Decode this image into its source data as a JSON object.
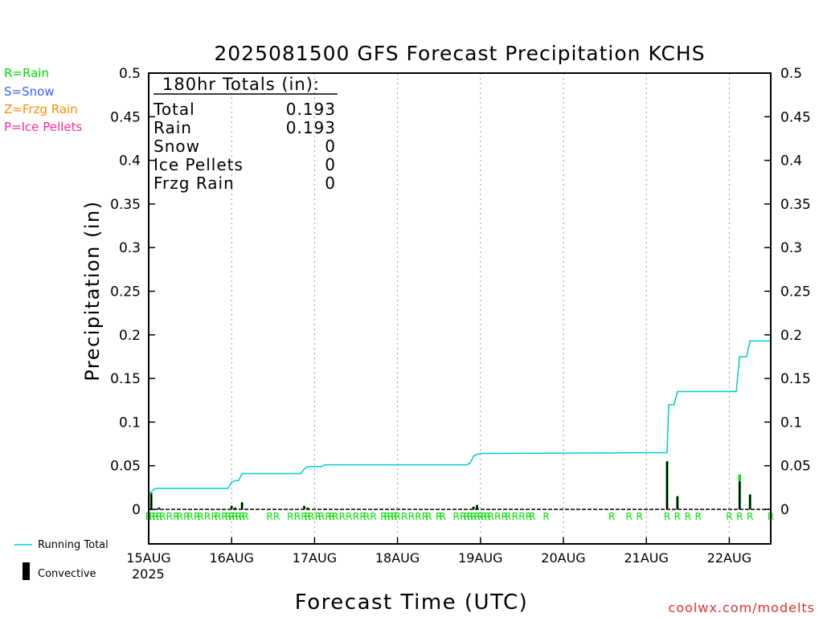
{
  "chart_data": {
    "type": "bar",
    "title": "2025081500 GFS Forecast Precipitation KCHS",
    "xlabel": "Forecast Time (UTC)",
    "ylabel": "Precipitation (in)",
    "ylim": [
      0,
      0.5
    ],
    "xlim_hours": [
      0,
      180
    ],
    "y_ticks": [
      "0",
      "0.05",
      "0.1",
      "0.15",
      "0.2",
      "0.25",
      "0.3",
      "0.35",
      "0.4",
      "0.45",
      "0.5"
    ],
    "x_ticks": [
      {
        "label": "15AUG",
        "hour": 0
      },
      {
        "label": "16AUG",
        "hour": 24
      },
      {
        "label": "17AUG",
        "hour": 48
      },
      {
        "label": "18AUG",
        "hour": 72
      },
      {
        "label": "19AUG",
        "hour": 96
      },
      {
        "label": "20AUG",
        "hour": 120
      },
      {
        "label": "21AUG",
        "hour": 144
      },
      {
        "label": "22AUG",
        "hour": 168
      }
    ],
    "x_year_label": "2025",
    "grid": "vertical dotted lines at each day",
    "legend_top_left": [
      {
        "label": "R=Rain",
        "color": "#00dd00"
      },
      {
        "label": "S=Snow",
        "color": "#3a5cff"
      },
      {
        "label": "Z=Frzg Rain",
        "color": "#ff8c00"
      },
      {
        "label": "P=Ice Pellets",
        "color": "#ff2a90"
      }
    ],
    "legend_bottom_left": [
      {
        "label": "Running Total",
        "color": "#00cccc",
        "kind": "line"
      },
      {
        "label": "Convective",
        "color": "#000000",
        "kind": "bar"
      }
    ],
    "totals_box": {
      "heading": "180hr Totals (in):",
      "rows": [
        {
          "label": "Total",
          "value": "0.193"
        },
        {
          "label": "Rain",
          "value": "0.193"
        },
        {
          "label": "Snow",
          "value": "0"
        },
        {
          "label": "Ice Pellets",
          "value": "0"
        },
        {
          "label": "Frzg Rain",
          "value": "0"
        }
      ]
    },
    "series": [
      {
        "name": "Precipitation",
        "color": "#00dd00",
        "bars": [
          {
            "hour": 0.75,
            "value": 0.019
          },
          {
            "hour": 3,
            "value": 0.002
          },
          {
            "hour": 24,
            "value": 0.004
          },
          {
            "hour": 25,
            "value": 0.002
          },
          {
            "hour": 27,
            "value": 0.008
          },
          {
            "hour": 45,
            "value": 0.004
          },
          {
            "hour": 46,
            "value": 0.002
          },
          {
            "hour": 51,
            "value": 0.001
          },
          {
            "hour": 94,
            "value": 0.003
          },
          {
            "hour": 95,
            "value": 0.005
          },
          {
            "hour": 150,
            "value": 0.055
          },
          {
            "hour": 153,
            "value": 0.015
          },
          {
            "hour": 171,
            "value": 0.04
          },
          {
            "hour": 174,
            "value": 0.017
          }
        ]
      },
      {
        "name": "Convective",
        "color": "#000000",
        "bars": [
          {
            "hour": 0.75,
            "value": 0.018
          },
          {
            "hour": 3,
            "value": 0.002
          },
          {
            "hour": 24,
            "value": 0.004
          },
          {
            "hour": 25,
            "value": 0.002
          },
          {
            "hour": 27,
            "value": 0.008
          },
          {
            "hour": 45,
            "value": 0.004
          },
          {
            "hour": 46,
            "value": 0.002
          },
          {
            "hour": 51,
            "value": 0.001
          },
          {
            "hour": 94,
            "value": 0.003
          },
          {
            "hour": 95,
            "value": 0.005
          },
          {
            "hour": 150,
            "value": 0.055
          },
          {
            "hour": 153,
            "value": 0.015
          },
          {
            "hour": 171,
            "value": 0.032
          },
          {
            "hour": 174,
            "value": 0.017
          }
        ]
      },
      {
        "name": "Running Total",
        "color": "#00cccc",
        "points": [
          [
            0,
            0.018
          ],
          [
            1,
            0.021
          ],
          [
            2,
            0.024
          ],
          [
            23,
            0.024
          ],
          [
            24,
            0.031
          ],
          [
            25,
            0.033
          ],
          [
            26,
            0.033
          ],
          [
            27,
            0.041
          ],
          [
            44,
            0.041
          ],
          [
            45,
            0.046
          ],
          [
            46,
            0.049
          ],
          [
            50,
            0.049
          ],
          [
            51,
            0.051
          ],
          [
            92,
            0.051
          ],
          [
            93,
            0.053
          ],
          [
            94,
            0.061
          ],
          [
            95,
            0.063
          ],
          [
            96,
            0.064
          ],
          [
            150,
            0.065
          ],
          [
            150.5,
            0.12
          ],
          [
            152,
            0.12
          ],
          [
            153,
            0.135
          ],
          [
            170,
            0.135
          ],
          [
            171,
            0.175
          ],
          [
            173,
            0.175
          ],
          [
            174,
            0.193
          ],
          [
            180,
            0.193
          ]
        ]
      }
    ],
    "precip_type_markers": {
      "label": "R",
      "color": "#00dd00",
      "hours": [
        0,
        1,
        2,
        3,
        4,
        6,
        8,
        9,
        11,
        12,
        14,
        15,
        17,
        19,
        20,
        22,
        23,
        24,
        25,
        26,
        27,
        28,
        35,
        37,
        41,
        43,
        45,
        46,
        47,
        49,
        50,
        52,
        53,
        54,
        56,
        58,
        60,
        62,
        63,
        65,
        68,
        69,
        70,
        71,
        72,
        74,
        76,
        78,
        80,
        81,
        84,
        85,
        89,
        91,
        92,
        93,
        94,
        95,
        96,
        97,
        98,
        99,
        101,
        103,
        104,
        106,
        108,
        110,
        111,
        115,
        134,
        139,
        142,
        150,
        153,
        156,
        159,
        168,
        171,
        174,
        180
      ]
    },
    "watermark": "coolwx.com/modelts"
  }
}
